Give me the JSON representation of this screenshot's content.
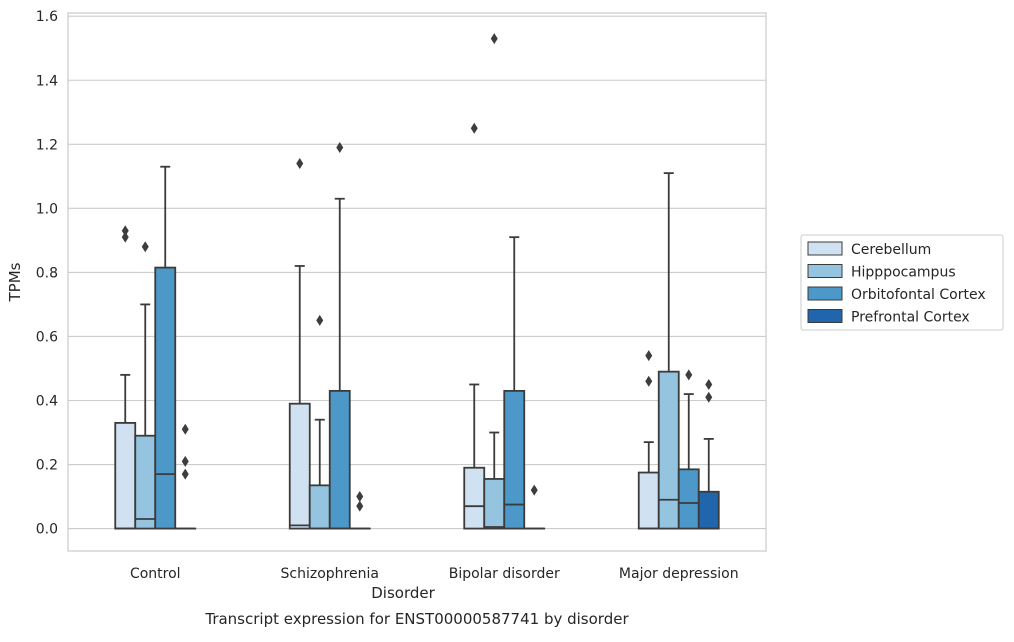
{
  "chart_data": {
    "type": "box",
    "xlabel": "Disorder",
    "ylabel": "TPMs",
    "caption": "Transcript expression for ENST00000587741 by disorder",
    "categories": [
      "Control",
      "Schizophrenia",
      "Bipolar disorder",
      "Major depression"
    ],
    "yticks": [
      "0.0",
      "0.2",
      "0.4",
      "0.6",
      "0.8",
      "1.0",
      "1.2",
      "1.4",
      "1.6"
    ],
    "ylim": [
      -0.07,
      1.61
    ],
    "grid": "horizontal",
    "legend_position": "right",
    "series": [
      {
        "name": "Cerebellum",
        "color": "#d0e1f2",
        "boxes": [
          {
            "q1": 0.0,
            "median": 0.0,
            "q3": 0.33,
            "whisker_low": 0.0,
            "whisker_high": 0.48,
            "outliers": [
              0.91,
              0.93
            ]
          },
          {
            "q1": 0.0,
            "median": 0.01,
            "q3": 0.39,
            "whisker_low": 0.0,
            "whisker_high": 0.82,
            "outliers": [
              1.14
            ]
          },
          {
            "q1": 0.0,
            "median": 0.07,
            "q3": 0.19,
            "whisker_low": 0.0,
            "whisker_high": 0.45,
            "outliers": [
              1.25
            ]
          },
          {
            "q1": 0.0,
            "median": 0.0,
            "q3": 0.175,
            "whisker_low": 0.0,
            "whisker_high": 0.27,
            "outliers": [
              0.46,
              0.54
            ]
          }
        ]
      },
      {
        "name": "Hipppocampus",
        "color": "#94c4df",
        "boxes": [
          {
            "q1": 0.0,
            "median": 0.03,
            "q3": 0.29,
            "whisker_low": 0.0,
            "whisker_high": 0.7,
            "outliers": [
              0.88
            ]
          },
          {
            "q1": 0.0,
            "median": 0.0,
            "q3": 0.135,
            "whisker_low": 0.0,
            "whisker_high": 0.34,
            "outliers": [
              0.65
            ]
          },
          {
            "q1": 0.0,
            "median": 0.005,
            "q3": 0.155,
            "whisker_low": 0.0,
            "whisker_high": 0.3,
            "outliers": [
              1.53
            ]
          },
          {
            "q1": 0.0,
            "median": 0.09,
            "q3": 0.49,
            "whisker_low": 0.0,
            "whisker_high": 1.11,
            "outliers": []
          }
        ]
      },
      {
        "name": "Orbitofontal Cortex",
        "color": "#4b98c9",
        "boxes": [
          {
            "q1": 0.0,
            "median": 0.17,
            "q3": 0.815,
            "whisker_low": 0.0,
            "whisker_high": 1.13,
            "outliers": []
          },
          {
            "q1": 0.0,
            "median": 0.0,
            "q3": 0.43,
            "whisker_low": 0.0,
            "whisker_high": 1.03,
            "outliers": [
              1.19
            ]
          },
          {
            "q1": 0.0,
            "median": 0.075,
            "q3": 0.43,
            "whisker_low": 0.0,
            "whisker_high": 0.91,
            "outliers": []
          },
          {
            "q1": 0.0,
            "median": 0.08,
            "q3": 0.185,
            "whisker_low": 0.0,
            "whisker_high": 0.42,
            "outliers": [
              0.48
            ]
          }
        ]
      },
      {
        "name": "Prefrontal Cortex",
        "color": "#2166ac",
        "boxes": [
          {
            "q1": 0.0,
            "median": 0.0,
            "q3": 0.0,
            "whisker_low": 0.0,
            "whisker_high": 0.0,
            "outliers": [
              0.17,
              0.21,
              0.31
            ]
          },
          {
            "q1": 0.0,
            "median": 0.0,
            "q3": 0.0,
            "whisker_low": 0.0,
            "whisker_high": 0.0,
            "outliers": [
              0.07,
              0.1
            ]
          },
          {
            "q1": 0.0,
            "median": 0.0,
            "q3": 0.0,
            "whisker_low": 0.0,
            "whisker_high": 0.0,
            "outliers": [
              0.12
            ]
          },
          {
            "q1": 0.0,
            "median": 0.0,
            "q3": 0.115,
            "whisker_low": 0.0,
            "whisker_high": 0.28,
            "outliers": [
              0.41,
              0.45
            ]
          }
        ]
      }
    ]
  }
}
